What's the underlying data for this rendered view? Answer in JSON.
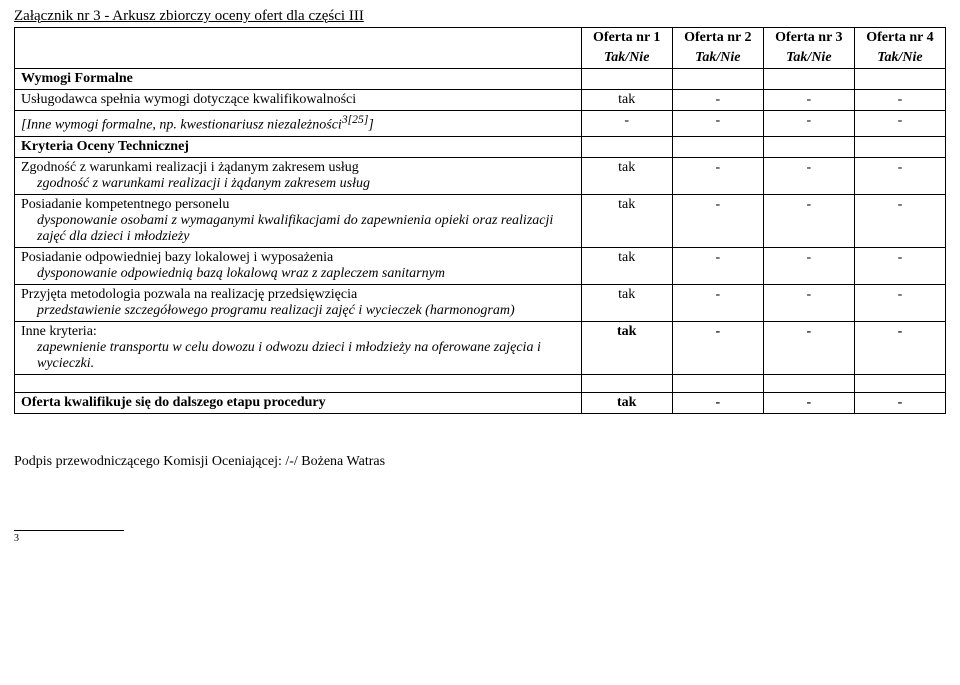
{
  "title": "Załącznik nr 3 - Arkusz zbiorczy oceny ofert dla części III",
  "columns": {
    "offers": [
      "Oferta nr 1",
      "Oferta nr 2",
      "Oferta nr 3",
      "Oferta nr 4"
    ],
    "subhead": "Tak/Nie"
  },
  "sections": {
    "formal": {
      "heading": "Wymogi Formalne",
      "rows": [
        {
          "label": "Usługodawca spełnia wymogi dotyczące kwalifikowalności",
          "italic": false,
          "vals": [
            "tak",
            "-",
            "-",
            "-"
          ]
        },
        {
          "label": "[Inne wymogi formalne, np. kwestionariusz niezależności",
          "sup": "3[25]",
          "tail": "]",
          "italic": true,
          "vals": [
            "-",
            "-",
            "-",
            "-"
          ]
        }
      ]
    },
    "technical": {
      "heading": "Kryteria Oceny Technicznej",
      "rows": [
        {
          "main": "Zgodność z warunkami realizacji i żądanym zakresem usług",
          "sub": "zgodność z warunkami realizacji i żądanym zakresem usług",
          "vals": [
            "tak",
            "-",
            "-",
            "-"
          ]
        },
        {
          "main": "Posiadanie kompetentnego personelu",
          "sub": "dysponowanie osobami z wymaganymi kwalifikacjami do zapewnienia opieki oraz realizacji zajęć dla dzieci i młodzieży",
          "vals": [
            "tak",
            "-",
            "-",
            "-"
          ]
        },
        {
          "main": "Posiadanie odpowiedniej bazy lokalowej i wyposażenia",
          "sub": "dysponowanie odpowiednią bazą lokalową wraz z  zapleczem sanitarnym",
          "vals": [
            "tak",
            "-",
            "-",
            "-"
          ]
        },
        {
          "main": "Przyjęta metodologia pozwala na realizację przedsięwzięcia",
          "sub": "przedstawienie szczegółowego  programu realizacji zajęć i wycieczek (harmonogram)",
          "vals": [
            "tak",
            "-",
            "-",
            "-"
          ]
        },
        {
          "main": "Inne kryteria:",
          "sub": "zapewnienie transportu w celu dowozu i odwozu dzieci i młodzieży na oferowane zajęcia i wycieczki.",
          "vals": [
            "tak",
            "-",
            "-",
            "-"
          ]
        }
      ]
    },
    "final": {
      "label": "Oferta kwalifikuje się do dalszego etapu procedury",
      "vals": [
        "tak",
        "-",
        "-",
        "-"
      ]
    }
  },
  "signoff": "Podpis przewodniczącego Komisji Oceniającej: /-/ Bożena Watras",
  "footnote_num": "3"
}
